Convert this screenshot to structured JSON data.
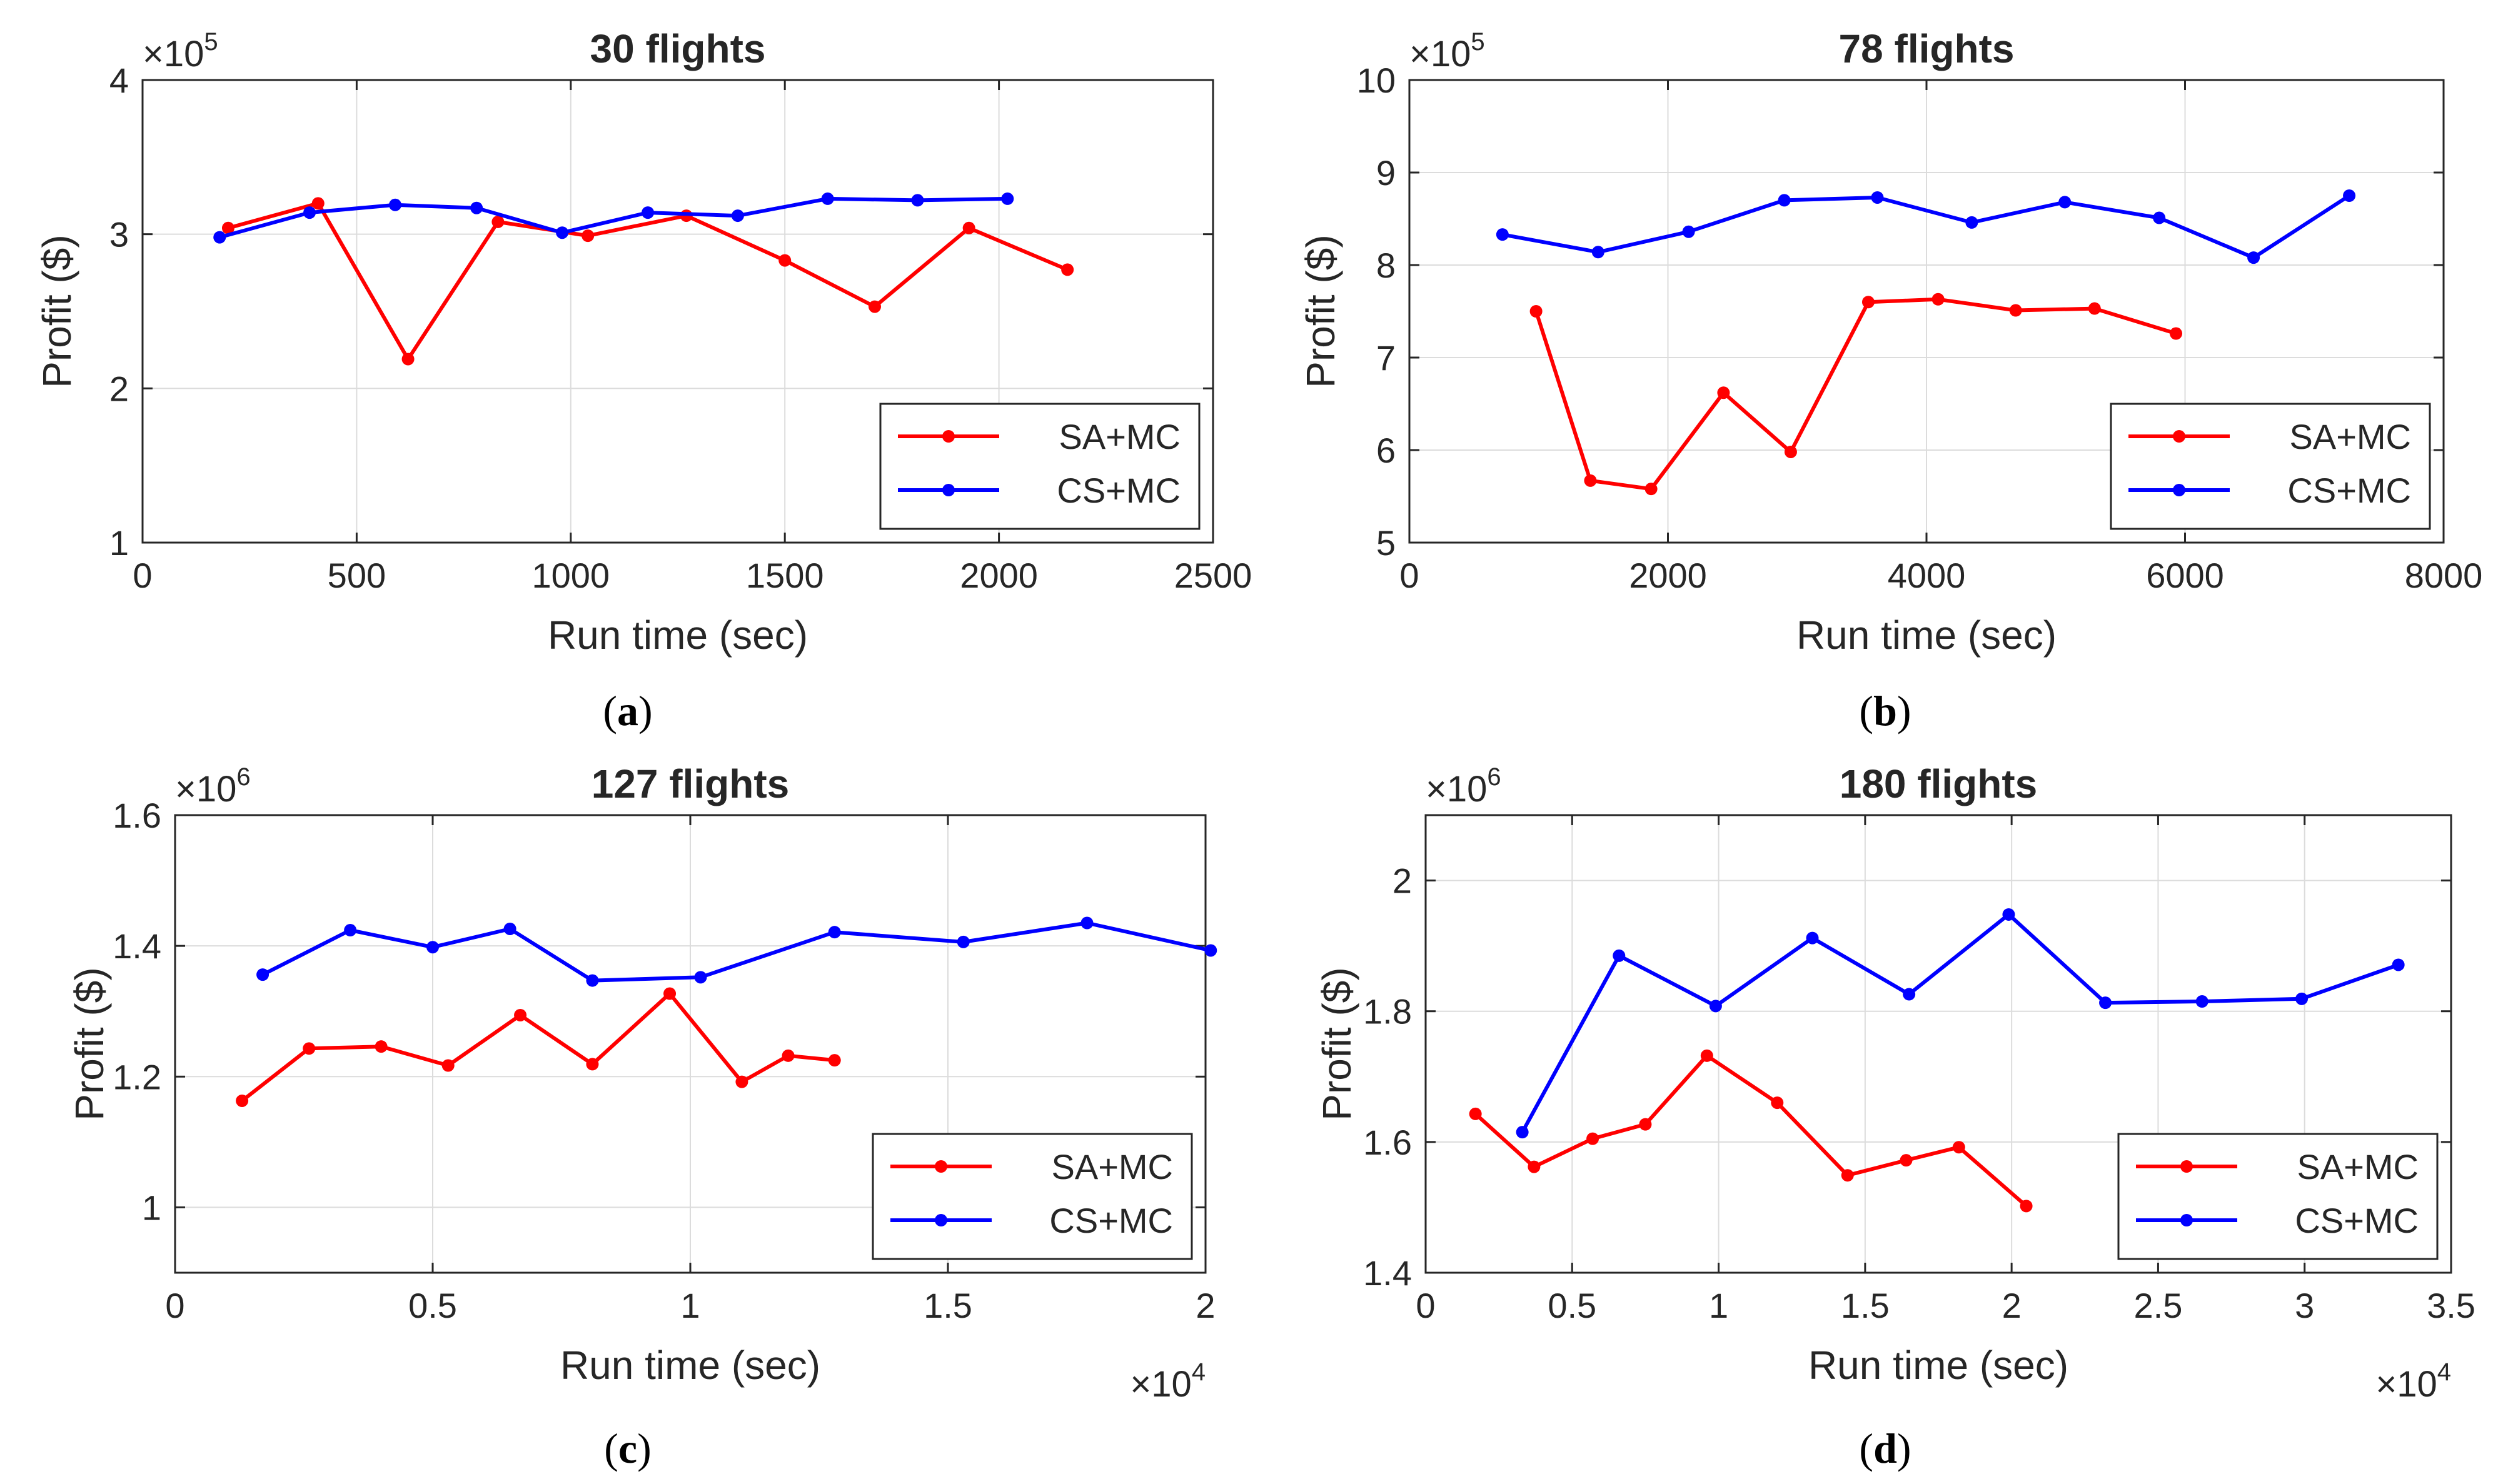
{
  "colors": {
    "sa": "#ff0000",
    "cs": "#0000ff",
    "grid": "#dcdcdc",
    "axis": "#262626"
  },
  "chart_data": [
    {
      "type": "line",
      "caption": "a",
      "title": "30 flights",
      "xlabel": "Run time (sec)",
      "ylabel": "Profit ($)",
      "xlim": [
        0,
        2500
      ],
      "ylim": [
        1,
        4
      ],
      "xticks": [
        0,
        500,
        1000,
        1500,
        2000,
        2500
      ],
      "xtick_labels": [
        "0",
        "500",
        "1000",
        "1500",
        "2000",
        "2500"
      ],
      "yticks": [
        1,
        2,
        3,
        4
      ],
      "ytick_labels": [
        "1",
        "2",
        "3",
        "4"
      ],
      "x_exponent": null,
      "y_exponent": {
        "base": "×10",
        "power": "5"
      },
      "legend_position": "bottom-right",
      "series": [
        {
          "name": "SA+MC",
          "color": "#ff0000",
          "x": [
            200,
            410,
            620,
            830,
            1040,
            1270,
            1500,
            1710,
            1930,
            2160
          ],
          "y": [
            3.04,
            3.2,
            2.19,
            3.08,
            2.99,
            3.12,
            2.83,
            2.53,
            3.04,
            2.77
          ]
        },
        {
          "name": "CS+MC",
          "color": "#0000ff",
          "x": [
            180,
            390,
            590,
            780,
            980,
            1180,
            1390,
            1600,
            1810,
            2020
          ],
          "y": [
            2.98,
            3.14,
            3.19,
            3.17,
            3.01,
            3.14,
            3.12,
            3.23,
            3.22,
            3.23
          ]
        }
      ]
    },
    {
      "type": "line",
      "caption": "b",
      "title": "78 flights",
      "xlabel": "Run time (sec)",
      "ylabel": "Profit ($)",
      "xlim": [
        0,
        8000
      ],
      "ylim": [
        5,
        10
      ],
      "xticks": [
        0,
        2000,
        4000,
        6000,
        8000
      ],
      "xtick_labels": [
        "0",
        "2000",
        "4000",
        "6000",
        "8000"
      ],
      "yticks": [
        5,
        6,
        7,
        8,
        9,
        10
      ],
      "ytick_labels": [
        "5",
        "6",
        "7",
        "8",
        "9",
        "10"
      ],
      "x_exponent": null,
      "y_exponent": {
        "base": "×10",
        "power": "5"
      },
      "legend_position": "bottom-right",
      "series": [
        {
          "name": "SA+MC",
          "color": "#ff0000",
          "x": [
            980,
            1400,
            1870,
            2430,
            2950,
            3550,
            4090,
            4690,
            5300,
            5930
          ],
          "y": [
            7.5,
            5.67,
            5.58,
            6.62,
            5.98,
            7.6,
            7.63,
            7.51,
            7.53,
            7.26
          ]
        },
        {
          "name": "CS+MC",
          "color": "#0000ff",
          "x": [
            720,
            1460,
            2160,
            2900,
            3620,
            4350,
            5070,
            5800,
            6530,
            7270
          ],
          "y": [
            8.33,
            8.14,
            8.36,
            8.7,
            8.73,
            8.46,
            8.68,
            8.51,
            8.08,
            8.75
          ]
        }
      ]
    },
    {
      "type": "line",
      "caption": "c",
      "title": "127 flights",
      "xlabel": "Run time (sec)",
      "ylabel": "Profit ($)",
      "xlim": [
        0,
        2
      ],
      "ylim": [
        0.9,
        1.6
      ],
      "xticks": [
        0,
        0.5,
        1,
        1.5,
        2
      ],
      "xtick_labels": [
        "0",
        "0.5",
        "1",
        "1.5",
        "2"
      ],
      "yticks": [
        1,
        1.2,
        1.4,
        1.6
      ],
      "ytick_labels": [
        "1",
        "1.2",
        "1.4",
        "1.6"
      ],
      "x_exponent": {
        "base": "×10",
        "power": "4"
      },
      "y_exponent": {
        "base": "×10",
        "power": "6"
      },
      "legend_position": "bottom-right",
      "series": [
        {
          "name": "SA+MC",
          "color": "#ff0000",
          "x": [
            0.13,
            0.26,
            0.4,
            0.53,
            0.67,
            0.81,
            0.96,
            1.1,
            1.19,
            1.28
          ],
          "y": [
            1.163,
            1.243,
            1.246,
            1.217,
            1.294,
            1.219,
            1.327,
            1.192,
            1.232,
            1.225
          ]
        },
        {
          "name": "CS+MC",
          "color": "#0000ff",
          "x": [
            0.17,
            0.34,
            0.5,
            0.65,
            0.81,
            1.02,
            1.28,
            1.53,
            1.77,
            2.01
          ],
          "y": [
            1.356,
            1.424,
            1.398,
            1.426,
            1.347,
            1.352,
            1.421,
            1.406,
            1.435,
            1.393
          ]
        }
      ]
    },
    {
      "type": "line",
      "caption": "d",
      "title": "180 flights",
      "xlabel": "Run time (sec)",
      "ylabel": "Profit ($)",
      "xlim": [
        0,
        3.5
      ],
      "ylim": [
        1.4,
        2.1
      ],
      "xticks": [
        0,
        0.5,
        1,
        1.5,
        2,
        2.5,
        3,
        3.5
      ],
      "xtick_labels": [
        "0",
        "0.5",
        "1",
        "1.5",
        "2",
        "2.5",
        "3",
        "3.5"
      ],
      "yticks": [
        1.4,
        1.6,
        1.8,
        2.0
      ],
      "ytick_labels": [
        "1.4",
        "1.6",
        "1.8",
        "2"
      ],
      "x_exponent": {
        "base": "×10",
        "power": "4"
      },
      "y_exponent": {
        "base": "×10",
        "power": "6"
      },
      "legend_position": "bottom-right",
      "series": [
        {
          "name": "SA+MC",
          "color": "#ff0000",
          "x": [
            0.17,
            0.37,
            0.57,
            0.75,
            0.96,
            1.2,
            1.44,
            1.64,
            1.82,
            2.05
          ],
          "y": [
            1.643,
            1.562,
            1.605,
            1.627,
            1.732,
            1.66,
            1.549,
            1.572,
            1.592,
            1.502
          ]
        },
        {
          "name": "CS+MC",
          "color": "#0000ff",
          "x": [
            0.33,
            0.66,
            0.99,
            1.32,
            1.65,
            1.99,
            2.32,
            2.65,
            2.99,
            3.32
          ],
          "y": [
            1.615,
            1.885,
            1.808,
            1.912,
            1.826,
            1.948,
            1.813,
            1.815,
            1.819,
            1.871
          ]
        }
      ]
    }
  ]
}
